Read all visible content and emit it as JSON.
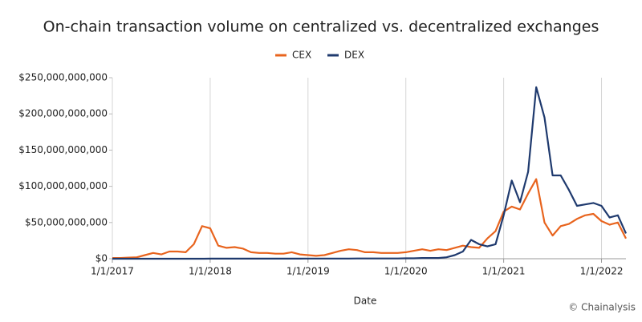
{
  "chart_data": {
    "type": "line",
    "title": "On-chain transaction volume on centralized vs. decentralized exchanges",
    "x_label": "Date",
    "source": "© Chainalysis",
    "x": [
      2017,
      2017.083,
      2017.167,
      2017.25,
      2017.333,
      2017.417,
      2017.5,
      2017.583,
      2017.667,
      2017.75,
      2017.833,
      2017.917,
      2018,
      2018.083,
      2018.167,
      2018.25,
      2018.333,
      2018.417,
      2018.5,
      2018.583,
      2018.667,
      2018.75,
      2018.833,
      2018.917,
      2019,
      2019.083,
      2019.167,
      2019.25,
      2019.333,
      2019.417,
      2019.5,
      2019.583,
      2019.667,
      2019.75,
      2019.833,
      2019.917,
      2020,
      2020.083,
      2020.167,
      2020.25,
      2020.333,
      2020.417,
      2020.5,
      2020.583,
      2020.667,
      2020.75,
      2020.833,
      2020.917,
      2021,
      2021.083,
      2021.167,
      2021.25,
      2021.333,
      2021.417,
      2021.5,
      2021.583,
      2021.667,
      2021.75,
      2021.833,
      2021.917,
      2022,
      2022.083,
      2022.167,
      2022.25
    ],
    "series": [
      {
        "name": "CEX",
        "color": "#e8641e",
        "values": [
          1000000000,
          1000000000,
          1500000000,
          2000000000,
          5000000000,
          8000000000,
          6000000000,
          10000000000,
          10000000000,
          9000000000,
          20000000000,
          45000000000,
          42000000000,
          18000000000,
          15000000000,
          16000000000,
          14000000000,
          9000000000,
          8000000000,
          8000000000,
          7000000000,
          7000000000,
          9000000000,
          6000000000,
          5000000000,
          4000000000,
          5000000000,
          8000000000,
          11000000000,
          13000000000,
          12000000000,
          9000000000,
          9000000000,
          8000000000,
          8000000000,
          8000000000,
          9000000000,
          11000000000,
          13000000000,
          11000000000,
          13000000000,
          12000000000,
          15000000000,
          18000000000,
          16000000000,
          15000000000,
          28000000000,
          38000000000,
          65000000000,
          72000000000,
          68000000000,
          90000000000,
          110000000000,
          50000000000,
          32000000000,
          45000000000,
          48000000000,
          55000000000,
          60000000000,
          62000000000,
          52000000000,
          47000000000,
          50000000000,
          28000000000
        ]
      },
      {
        "name": "DEX",
        "color": "#1f3a6e",
        "values": [
          0,
          0,
          0,
          0,
          0,
          0,
          0,
          0,
          0,
          0,
          0,
          0,
          100000000,
          100000000,
          100000000,
          100000000,
          100000000,
          100000000,
          100000000,
          100000000,
          100000000,
          100000000,
          100000000,
          100000000,
          200000000,
          200000000,
          200000000,
          200000000,
          200000000,
          200000000,
          300000000,
          300000000,
          300000000,
          300000000,
          300000000,
          300000000,
          500000000,
          500000000,
          1000000000,
          1000000000,
          1000000000,
          2000000000,
          5000000000,
          10000000000,
          26000000000,
          20000000000,
          17000000000,
          20000000000,
          60000000000,
          108000000000,
          78000000000,
          120000000000,
          237000000000,
          195000000000,
          115000000000,
          115000000000,
          95000000000,
          73000000000,
          75000000000,
          77000000000,
          73000000000,
          57000000000,
          60000000000,
          35000000000
        ]
      }
    ],
    "xlim": [
      2017,
      2022.25
    ],
    "xticks": [
      {
        "value": 2017,
        "label": "1/1/2017"
      },
      {
        "value": 2018,
        "label": "1/1/2018"
      },
      {
        "value": 2019,
        "label": "1/1/2019"
      },
      {
        "value": 2020,
        "label": "1/1/2020"
      },
      {
        "value": 2021,
        "label": "1/1/2021"
      },
      {
        "value": 2022,
        "label": "1/1/2022"
      }
    ],
    "ylim": [
      0,
      250000000000
    ],
    "yticks": [
      {
        "value": 0,
        "label": "$0"
      },
      {
        "value": 50000000000,
        "label": "$50,000,000,000"
      },
      {
        "value": 100000000000,
        "label": "$100,000,000,000"
      },
      {
        "value": 150000000000,
        "label": "$150,000,000,000"
      },
      {
        "value": 200000000000,
        "label": "$200,000,000,000"
      },
      {
        "value": 250000000000,
        "label": "$250,000,000,000"
      }
    ],
    "grid": true
  }
}
